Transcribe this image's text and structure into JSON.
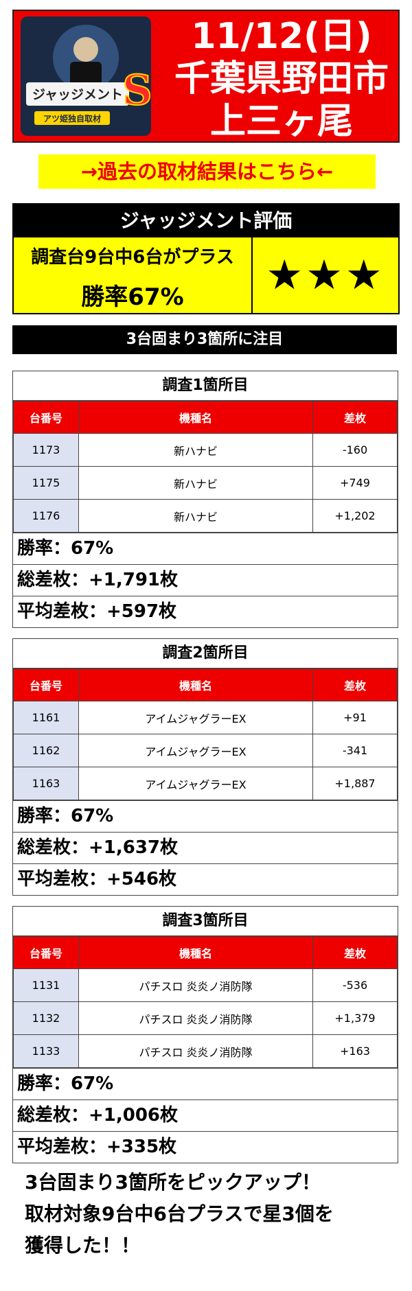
{
  "header": {
    "date": "11/12(日)",
    "city": "千葉県野田市",
    "store": "上三ヶ尾",
    "logo_title": "ジャッジメント",
    "logo_sub": "アツ姫独自取材"
  },
  "past_link": "→過去の取材結果はこちら←",
  "evaluation": {
    "heading": "ジャッジメント評価",
    "summary": "調査台9台中6台がプラス",
    "win_rate": "勝率67%",
    "stars": "★★★"
  },
  "notice": "3台固まり3箇所に注目",
  "table_headers": {
    "number": "台番号",
    "machine": "機種名",
    "diff": "差枚"
  },
  "surveys": [
    {
      "title": "調査1箇所目",
      "rows": [
        {
          "number": "1173",
          "machine": "新ハナビ",
          "diff": "-160"
        },
        {
          "number": "1175",
          "machine": "新ハナビ",
          "diff": "+749"
        },
        {
          "number": "1176",
          "machine": "新ハナビ",
          "diff": "+1,202"
        }
      ],
      "win_rate": "勝率：67%",
      "total": "総差枚：+1,791枚",
      "average": "平均差枚：+597枚"
    },
    {
      "title": "調査2箇所目",
      "rows": [
        {
          "number": "1161",
          "machine": "アイムジャグラーEX",
          "diff": "+91"
        },
        {
          "number": "1162",
          "machine": "アイムジャグラーEX",
          "diff": "-341"
        },
        {
          "number": "1163",
          "machine": "アイムジャグラーEX",
          "diff": "+1,887"
        }
      ],
      "win_rate": "勝率：67%",
      "total": "総差枚：+1,637枚",
      "average": "平均差枚：+546枚"
    },
    {
      "title": "調査3箇所目",
      "rows": [
        {
          "number": "1131",
          "machine": "パチスロ 炎炎ノ消防隊",
          "diff": "-536"
        },
        {
          "number": "1132",
          "machine": "パチスロ 炎炎ノ消防隊",
          "diff": "+1,379"
        },
        {
          "number": "1133",
          "machine": "パチスロ 炎炎ノ消防隊",
          "diff": "+163"
        }
      ],
      "win_rate": "勝率：67%",
      "total": "総差枚：+1,006枚",
      "average": "平均差枚：+335枚"
    }
  ],
  "summary_lines": [
    "3台固まり3箇所をピックアップ！",
    "取材対象9台中6台プラスで星3個を",
    "獲得した！！"
  ],
  "colors": {
    "accent_red": "#ee0000",
    "highlight_yellow": "#ffff00",
    "number_cell": "#dde2f2"
  }
}
